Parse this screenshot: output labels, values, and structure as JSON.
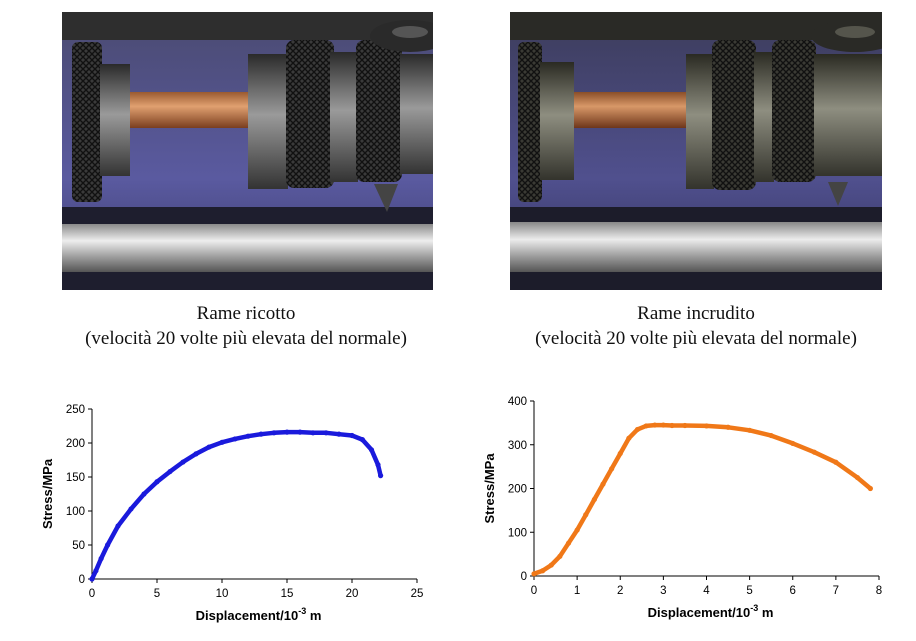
{
  "photos": [
    {
      "caption_line1": "Rame ricotto",
      "caption_line2": "(velocità 20 volte più elevata del normale)"
    },
    {
      "caption_line1": "Rame incrudito",
      "caption_line2": "(velocità 20 volte più elevata del normale)"
    }
  ],
  "chart_data": [
    {
      "type": "scatter",
      "xlabel": "Displacement/10^-3 m",
      "xlabel_base": "Displacement/10",
      "xlabel_exp": "-3",
      "xlabel_unit": " m",
      "ylabel": "Stress/MPa",
      "xlim": [
        0,
        25
      ],
      "ylim": [
        0,
        250
      ],
      "xticks": [
        0,
        5,
        10,
        15,
        20,
        25
      ],
      "yticks": [
        0,
        50,
        100,
        150,
        200,
        250
      ],
      "grid": false,
      "legend": "none",
      "color": "#1a1adc",
      "series": [
        {
          "x": [
            0,
            0.3,
            0.7,
            1.2,
            2,
            3,
            4,
            5,
            6,
            7,
            8,
            9,
            10,
            11,
            12,
            13,
            14,
            15,
            16,
            17,
            18,
            19,
            20,
            20.8,
            21.5,
            22,
            22.2
          ],
          "y": [
            0,
            12,
            30,
            50,
            78,
            103,
            125,
            143,
            158,
            172,
            184,
            194,
            201,
            206,
            210,
            213,
            215,
            216,
            216,
            215,
            215,
            213,
            211,
            205,
            190,
            168,
            152
          ]
        }
      ]
    },
    {
      "type": "scatter",
      "xlabel": "Displacement/10^-3 m",
      "xlabel_base": "Displacement/10",
      "xlabel_exp": "-3",
      "xlabel_unit": " m",
      "ylabel": "Stress/MPa",
      "xlim": [
        0,
        8
      ],
      "ylim": [
        0,
        400
      ],
      "xticks": [
        0,
        1,
        2,
        3,
        4,
        5,
        6,
        7,
        8
      ],
      "yticks": [
        0,
        100,
        200,
        300,
        400
      ],
      "grid": false,
      "legend": "none",
      "color": "#f07818",
      "series": [
        {
          "x": [
            0,
            0.2,
            0.4,
            0.6,
            0.8,
            1,
            1.2,
            1.4,
            1.6,
            1.8,
            2,
            2.2,
            2.4,
            2.6,
            2.8,
            3,
            3.2,
            3.5,
            4,
            4.5,
            5,
            5.5,
            6,
            6.5,
            7,
            7.5,
            7.8
          ],
          "y": [
            5,
            12,
            25,
            45,
            75,
            105,
            140,
            175,
            210,
            245,
            280,
            315,
            335,
            343,
            345,
            345,
            344,
            344,
            343,
            340,
            333,
            321,
            303,
            283,
            260,
            225,
            200
          ]
        }
      ]
    }
  ]
}
